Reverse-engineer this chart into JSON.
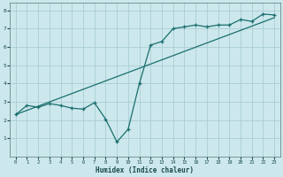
{
  "xlabel": "Humidex (Indice chaleur)",
  "background_color": "#cce8ec",
  "grid_color": "#aacdd4",
  "line_color": "#1a6e6e",
  "xlim": [
    -0.5,
    23.5
  ],
  "ylim": [
    0,
    8.4
  ],
  "xticks": [
    0,
    1,
    2,
    3,
    4,
    5,
    6,
    7,
    8,
    9,
    10,
    11,
    12,
    13,
    14,
    15,
    16,
    17,
    18,
    19,
    20,
    21,
    22,
    23
  ],
  "yticks": [
    1,
    2,
    3,
    4,
    5,
    6,
    7,
    8
  ],
  "line1_x": [
    0,
    1,
    2,
    3,
    4,
    5,
    6,
    7,
    8,
    9,
    10,
    11,
    12,
    13,
    14,
    15,
    16,
    17,
    18,
    19,
    20,
    21,
    22,
    23
  ],
  "line1_y": [
    2.3,
    2.8,
    2.7,
    2.9,
    2.8,
    2.65,
    2.6,
    2.95,
    2.05,
    0.8,
    1.5,
    4.0,
    6.1,
    6.3,
    7.0,
    7.1,
    7.2,
    7.1,
    7.2,
    7.2,
    7.5,
    7.4,
    7.8,
    7.75
  ],
  "line2_x": [
    0,
    23
  ],
  "line2_y": [
    2.3,
    7.6
  ]
}
